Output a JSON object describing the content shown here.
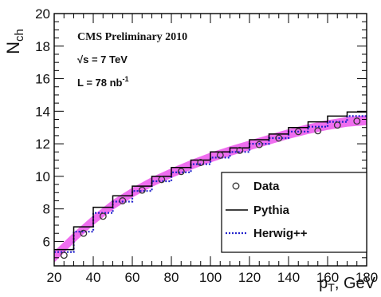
{
  "chart_data": {
    "type": "line",
    "xlabel": "p",
    "xlabel_sub": "T",
    "xlabel_unit": ", GeV",
    "ylabel": "N",
    "ylabel_sub": "ch",
    "xlim": [
      20,
      180
    ],
    "ylim": [
      4.5,
      20
    ],
    "xticks": [
      20,
      40,
      60,
      80,
      100,
      120,
      140,
      160,
      180
    ],
    "yticks": [
      6,
      8,
      10,
      12,
      14,
      16,
      18,
      20
    ],
    "annotations": {
      "line1": "CMS Preliminary 2010",
      "line2_prefix": "√s = 7 TeV",
      "line3_prefix": "L = 78 nb",
      "line3_sup": "-1"
    },
    "legend": {
      "position": "bottom-right",
      "entries": [
        "Data",
        "Pythia",
        "Herwig++"
      ]
    },
    "colors": {
      "band": "#ee66ee",
      "herwig": "#2222cc",
      "pythia": "#000000"
    },
    "series": [
      {
        "name": "Data",
        "x": [
          25,
          35,
          45,
          55,
          65,
          75,
          85,
          95,
          105,
          115,
          125,
          135,
          145,
          155,
          165,
          175
        ],
        "values": [
          5.15,
          6.5,
          7.55,
          8.5,
          9.15,
          9.8,
          10.3,
          10.85,
          11.3,
          11.6,
          11.95,
          12.35,
          12.75,
          12.8,
          13.15,
          13.4
        ]
      },
      {
        "name": "Pythia",
        "bin_edges": [
          20,
          30,
          40,
          50,
          60,
          70,
          80,
          90,
          100,
          110,
          120,
          130,
          140,
          150,
          160,
          170,
          180
        ],
        "values": [
          5.5,
          6.9,
          8.1,
          8.8,
          9.4,
          10.0,
          10.55,
          11.0,
          11.5,
          11.75,
          12.25,
          12.6,
          13.0,
          13.35,
          13.7,
          13.95
        ]
      },
      {
        "name": "Herwig++",
        "bin_edges": [
          20,
          30,
          40,
          50,
          60,
          70,
          80,
          90,
          100,
          110,
          120,
          130,
          140,
          150,
          160,
          170,
          180
        ],
        "values": [
          5.35,
          6.6,
          7.75,
          8.45,
          9.1,
          9.7,
          10.25,
          10.75,
          11.15,
          11.5,
          12.0,
          12.35,
          12.75,
          13.05,
          13.35,
          13.7
        ]
      },
      {
        "name": "systematic band",
        "x": [
          20,
          30,
          40,
          50,
          60,
          70,
          80,
          90,
          100,
          110,
          120,
          130,
          140,
          150,
          160,
          170,
          180
        ],
        "lower": [
          4.7,
          5.9,
          7.0,
          7.95,
          8.7,
          9.35,
          9.9,
          10.4,
          10.85,
          11.25,
          11.6,
          11.95,
          12.3,
          12.6,
          12.85,
          13.05,
          13.15
        ],
        "upper": [
          5.4,
          6.55,
          7.6,
          8.55,
          9.3,
          9.95,
          10.5,
          11.0,
          11.45,
          11.85,
          12.2,
          12.55,
          12.9,
          13.2,
          13.45,
          13.65,
          13.75
        ]
      }
    ]
  }
}
